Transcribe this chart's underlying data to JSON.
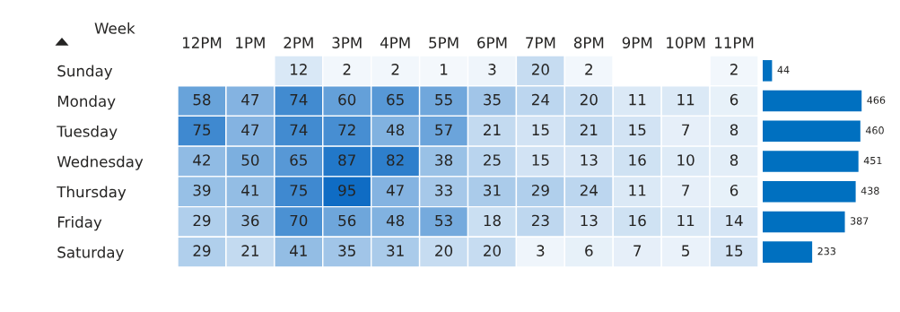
{
  "chart_data": [
    {
      "type": "heatmap",
      "annotations": [
        "Week"
      ],
      "categories": [
        "12PM",
        "1PM",
        "2PM",
        "3PM",
        "4PM",
        "5PM",
        "6PM",
        "7PM",
        "8PM",
        "9PM",
        "10PM",
        "11PM"
      ],
      "y_categories": [
        "Sunday",
        "Monday",
        "Tuesday",
        "Wednesday",
        "Thursday",
        "Friday",
        "Saturday"
      ],
      "cells": [
        [
          null,
          null,
          12,
          2,
          2,
          1,
          3,
          20,
          2,
          null,
          null,
          2
        ],
        [
          58,
          47,
          74,
          60,
          65,
          55,
          35,
          24,
          20,
          11,
          11,
          6
        ],
        [
          75,
          47,
          74,
          72,
          48,
          57,
          21,
          15,
          21,
          15,
          7,
          8
        ],
        [
          42,
          50,
          65,
          87,
          82,
          38,
          25,
          15,
          13,
          16,
          10,
          8
        ],
        [
          39,
          41,
          75,
          95,
          47,
          33,
          31,
          29,
          24,
          11,
          7,
          6
        ],
        [
          29,
          36,
          70,
          56,
          48,
          53,
          18,
          23,
          13,
          16,
          11,
          14
        ],
        [
          29,
          21,
          41,
          35,
          31,
          20,
          20,
          3,
          6,
          7,
          5,
          15
        ]
      ],
      "color": "#0f6cc4",
      "data_labels": true
    },
    {
      "type": "bar",
      "orientation": "horizontal",
      "categories": [
        null,
        null,
        null,
        null,
        null,
        null,
        null
      ],
      "values": [
        44,
        466,
        460,
        451,
        438,
        387,
        233
      ],
      "color": "#0070c0",
      "data_labels": true
    }
  ]
}
